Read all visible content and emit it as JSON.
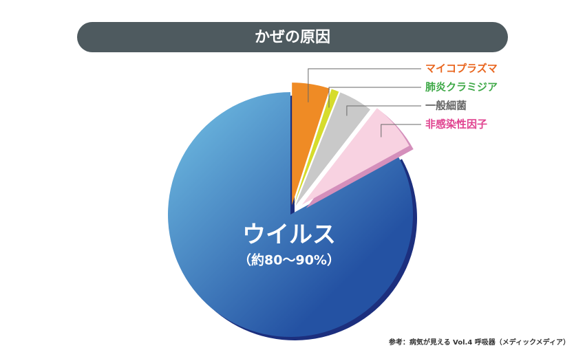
{
  "chart_data": {
    "type": "pie",
    "title": "かぜの原因",
    "categories": [
      "ウイルス",
      "マイコプラズマ",
      "肺炎クラミジア",
      "一般細菌",
      "非感染性因子"
    ],
    "values": [
      83,
      5,
      1,
      4.5,
      6.5
    ],
    "colors": [
      "#2452a3",
      "#ef8b25",
      "#d6dc2c",
      "#c9c9c9",
      "#f8d2e1"
    ],
    "label_colors": [
      "#ffffff",
      "#e9661f",
      "#3da846",
      "#666666",
      "#e0428f"
    ],
    "annotation": "（約80〜90%）",
    "source": "参考：病気が見える Vol.4 呼吸器（メディックメディア）"
  }
}
